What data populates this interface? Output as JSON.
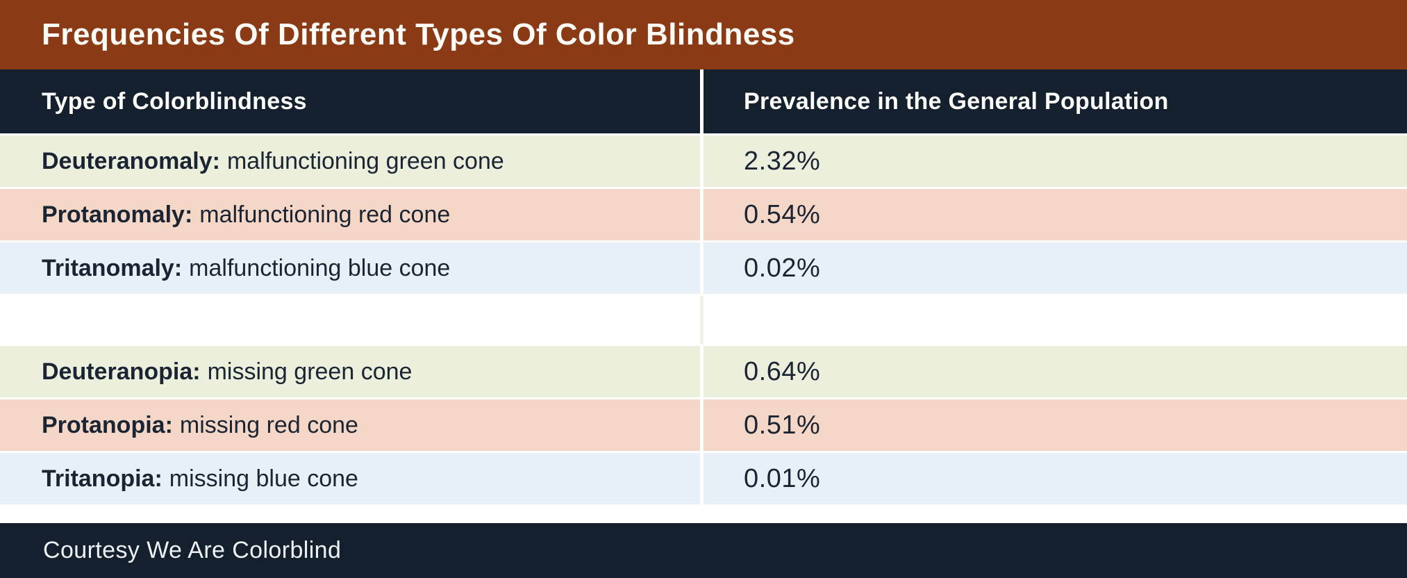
{
  "title": "Frequencies Of Different Types Of Color Blindness",
  "header": {
    "col_type": "Type of Colorblindness",
    "col_prevalence": "Prevalence in the General Population"
  },
  "table": {
    "rows": [
      {
        "term": "Deuteranomaly:",
        "desc": "malfunctioning green cone",
        "value": "2.32%",
        "tint": "green"
      },
      {
        "term": "Protanomaly:",
        "desc": "malfunctioning red cone",
        "value": "0.54%",
        "tint": "pink"
      },
      {
        "term": "Tritanomaly:",
        "desc": "malfunctioning blue cone",
        "value": "0.02%",
        "tint": "blue"
      },
      {
        "term": "Deuteranopia:",
        "desc": "missing green cone",
        "value": "0.64%",
        "tint": "green"
      },
      {
        "term": "Protanopia:",
        "desc": "missing red cone",
        "value": "0.51%",
        "tint": "pink"
      },
      {
        "term": "Tritanopia:",
        "desc": "missing blue cone",
        "value": "0.01%",
        "tint": "blue"
      }
    ]
  },
  "footer": {
    "credit": "Courtesy We Are Colorblind"
  },
  "colors": {
    "title_bar": "#8a3a14",
    "header_bar": "#14202e",
    "row_green": "#ebefdc",
    "row_pink": "#f4d7c7",
    "row_blue": "#e8f0f7",
    "row_text": "#1b2432",
    "light_text": "#fbfbf8"
  },
  "chart_data": {
    "type": "table",
    "title": "Frequencies Of Different Types Of Color Blindness",
    "columns": [
      "Type of Colorblindness",
      "Prevalence in the General Population"
    ],
    "categories": [
      "Deuteranomaly (malfunctioning green cone)",
      "Protanomaly (malfunctioning red cone)",
      "Tritanomaly (malfunctioning blue cone)",
      "Deuteranopia (missing green cone)",
      "Protanopia (missing red cone)",
      "Tritanopia (missing blue cone)"
    ],
    "values_percent": [
      2.32,
      0.54,
      0.02,
      0.64,
      0.51,
      0.01
    ],
    "source": "Courtesy We Are Colorblind"
  }
}
